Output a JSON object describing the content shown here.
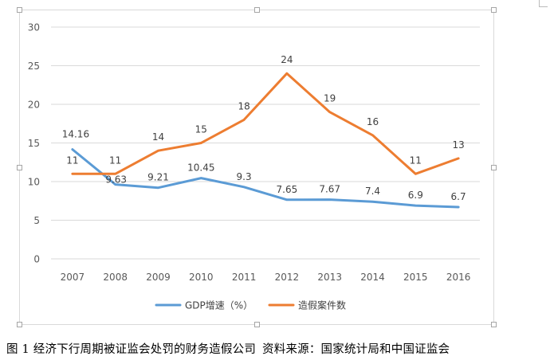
{
  "chart_data": {
    "type": "line",
    "categories": [
      "2007",
      "2008",
      "2009",
      "2010",
      "2011",
      "2012",
      "2013",
      "2014",
      "2015",
      "2016"
    ],
    "series": [
      {
        "name": "GDP增速（%）",
        "color": "#5b9bd5",
        "values": [
          14.16,
          9.63,
          9.21,
          10.45,
          9.3,
          7.65,
          7.67,
          7.4,
          6.9,
          6.7
        ],
        "labels": [
          "14.16",
          "9.63",
          "9.21",
          "10.45",
          "9.3",
          "7.65",
          "7.67",
          "7.4",
          "6.9",
          "6.7"
        ]
      },
      {
        "name": "造假案件数",
        "color": "#ed7d31",
        "values": [
          11,
          11,
          14,
          15,
          18,
          24,
          19,
          16,
          11,
          13
        ],
        "labels": [
          "11",
          "11",
          "14",
          "15",
          "18",
          "24",
          "19",
          "16",
          "11",
          "13"
        ]
      }
    ],
    "ylim": [
      0,
      30
    ],
    "yticks": [
      "0",
      "5",
      "10",
      "15",
      "20",
      "25",
      "30"
    ],
    "grid": true,
    "legend_position": "bottom"
  },
  "caption": {
    "figure_title": "图 1  经济下行周期被证监会处罚的财务造假公司",
    "source": "资料来源：国家统计局和中国证监会"
  }
}
